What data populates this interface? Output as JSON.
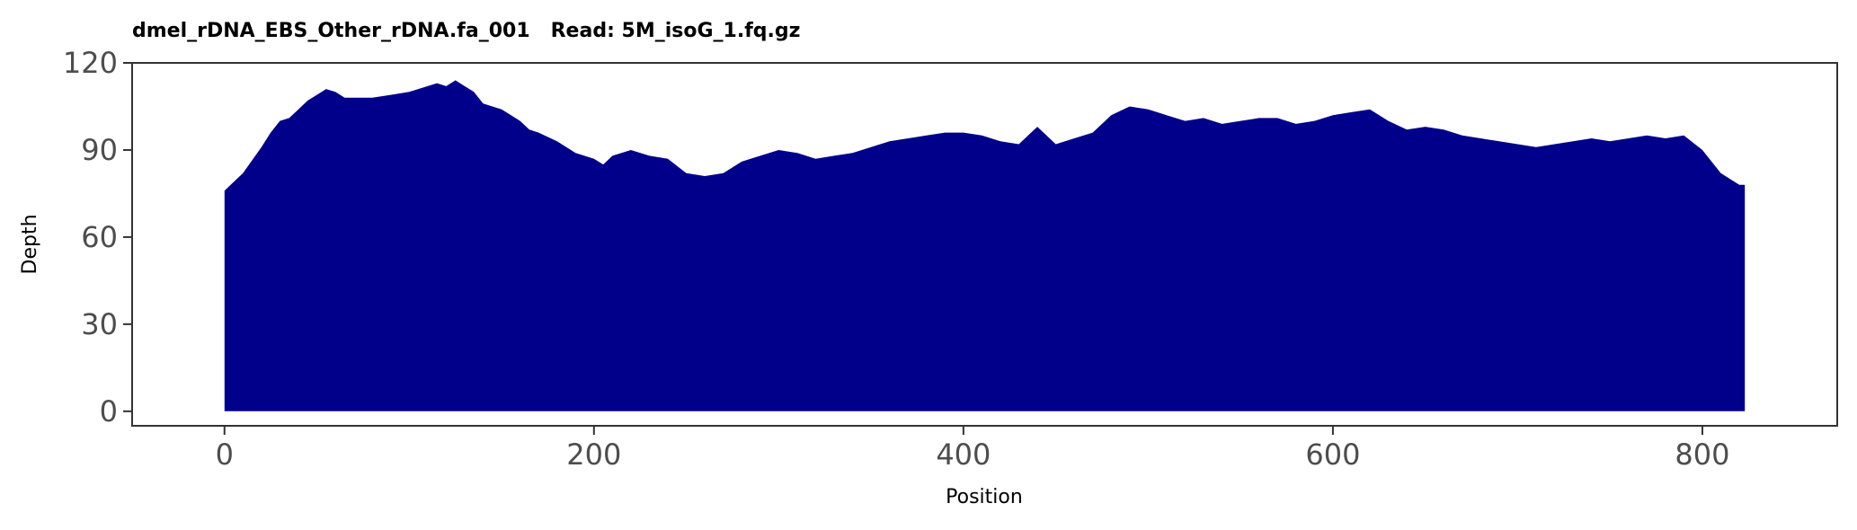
{
  "chart_data": {
    "type": "area",
    "title": "dmel_rDNA_EBS_Other_rDNA.fa_001   Read: 5M_isoG_1.fq.gz",
    "xlabel": "Position",
    "ylabel": "Depth",
    "xlim": [
      -50,
      873
    ],
    "ylim": [
      -5,
      120
    ],
    "x_ticks": [
      0,
      200,
      400,
      600,
      800
    ],
    "x_tick_labels": [
      "0",
      "200",
      "400",
      "600",
      "800"
    ],
    "y_ticks": [
      0,
      30,
      60,
      90,
      120
    ],
    "y_tick_labels": [
      "0",
      "30",
      "60",
      "90",
      "120"
    ],
    "grid": false,
    "legend": "none",
    "fill_color": "#00008B",
    "x": [
      0,
      10,
      20,
      25,
      30,
      35,
      40,
      45,
      50,
      55,
      60,
      65,
      70,
      80,
      90,
      100,
      110,
      115,
      120,
      125,
      130,
      135,
      140,
      150,
      160,
      165,
      170,
      180,
      190,
      200,
      205,
      210,
      220,
      230,
      240,
      250,
      260,
      270,
      280,
      290,
      300,
      310,
      320,
      330,
      340,
      350,
      360,
      370,
      380,
      390,
      400,
      410,
      420,
      430,
      440,
      450,
      460,
      470,
      480,
      490,
      500,
      510,
      520,
      530,
      540,
      550,
      560,
      570,
      580,
      590,
      600,
      610,
      620,
      630,
      640,
      650,
      660,
      670,
      680,
      690,
      700,
      710,
      720,
      730,
      740,
      750,
      760,
      770,
      780,
      790,
      800,
      810,
      815,
      820,
      823
    ],
    "y": [
      76,
      82,
      91,
      96,
      100,
      101,
      104,
      107,
      109,
      111,
      110,
      108,
      108,
      108,
      109,
      110,
      112,
      113,
      112,
      114,
      112,
      110,
      106,
      104,
      100,
      97,
      96,
      93,
      89,
      87,
      85,
      88,
      90,
      88,
      87,
      82,
      81,
      82,
      86,
      88,
      90,
      89,
      87,
      88,
      89,
      91,
      93,
      94,
      95,
      96,
      96,
      95,
      93,
      92,
      98,
      92,
      94,
      96,
      102,
      105,
      104,
      102,
      100,
      101,
      99,
      100,
      101,
      101,
      99,
      100,
      102,
      103,
      104,
      100,
      97,
      98,
      97,
      95,
      94,
      93,
      92,
      91,
      92,
      93,
      94,
      93,
      94,
      95,
      94,
      95,
      90,
      82,
      80,
      78,
      78
    ]
  }
}
